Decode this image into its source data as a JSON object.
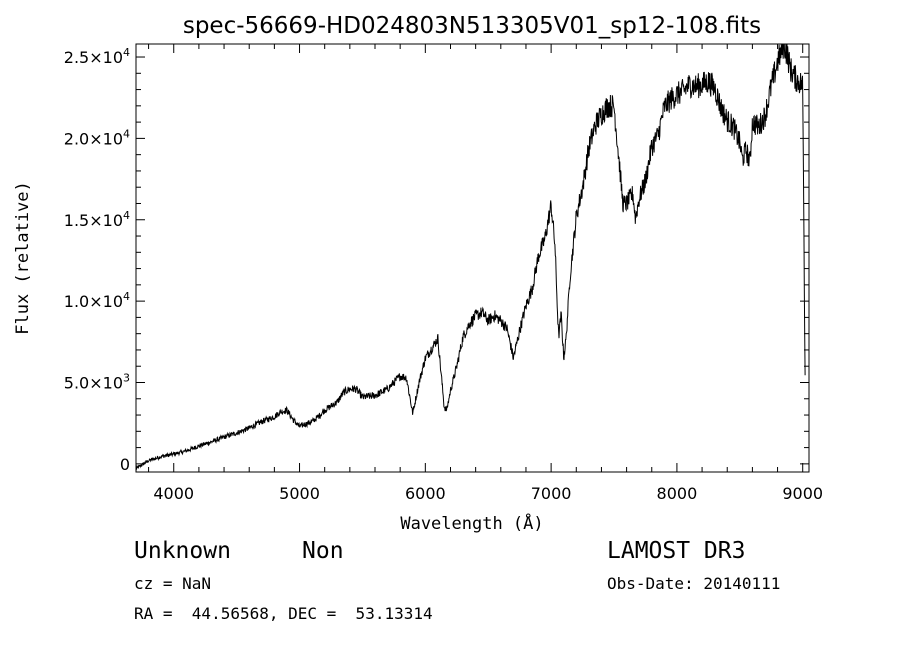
{
  "chart_data": {
    "type": "line",
    "title": "spec-56669-HD024803N513305V01_sp12-108.fits",
    "xlabel": "Wavelength (Å)",
    "ylabel": "Flux (relative)",
    "xlim": [
      3700,
      9050
    ],
    "ylim": [
      -500,
      25800
    ],
    "x_ticks": [
      4000,
      5000,
      6000,
      7000,
      8000,
      9000
    ],
    "x_tick_labels": [
      "4000",
      "5000",
      "6000",
      "7000",
      "8000",
      "9000"
    ],
    "y_ticks": [
      {
        "value": 0,
        "mantissa": "0",
        "exponent": ""
      },
      {
        "value": 5000,
        "mantissa": "5.0×10",
        "exponent": "3"
      },
      {
        "value": 10000,
        "mantissa": "1.0×10",
        "exponent": "4"
      },
      {
        "value": 15000,
        "mantissa": "1.5×10",
        "exponent": "4"
      },
      {
        "value": 20000,
        "mantissa": "2.0×10",
        "exponent": "4"
      },
      {
        "value": 25000,
        "mantissa": "2.5×10",
        "exponent": "4"
      }
    ],
    "grid": false,
    "series": [
      {
        "x": [
          3700,
          3800,
          3900,
          4000,
          4100,
          4200,
          4300,
          4400,
          4500,
          4600,
          4700,
          4800,
          4850,
          4900,
          4950,
          5000,
          5100,
          5150,
          5200,
          5300,
          5350,
          5400,
          5450,
          5500,
          5600,
          5700,
          5800,
          5850,
          5900,
          5950,
          6000,
          6100,
          6150,
          6170,
          6200,
          6250,
          6300,
          6350,
          6400,
          6450,
          6500,
          6550,
          6600,
          6650,
          6700,
          6750,
          6800,
          6850,
          6900,
          6950,
          7000,
          7030,
          7050,
          7060,
          7080,
          7100,
          7120,
          7150,
          7200,
          7250,
          7300,
          7350,
          7400,
          7450,
          7500,
          7550,
          7570,
          7600,
          7650,
          7670,
          7700,
          7750,
          7800,
          7850,
          7900,
          7950,
          8000,
          8050,
          8100,
          8150,
          8200,
          8250,
          8300,
          8350,
          8400,
          8450,
          8500,
          8520,
          8550,
          8580,
          8600,
          8650,
          8700,
          8750,
          8800,
          8850,
          8880,
          8900,
          8950,
          9000,
          9020
        ],
        "y": [
          -300,
          200,
          450,
          600,
          800,
          1100,
          1350,
          1650,
          1900,
          2200,
          2600,
          2900,
          3200,
          3300,
          2700,
          2300,
          2600,
          2900,
          3300,
          3800,
          4400,
          4600,
          4600,
          4100,
          4200,
          4600,
          5400,
          5300,
          3100,
          5000,
          6500,
          7700,
          3500,
          3300,
          4500,
          6000,
          7800,
          8600,
          9100,
          9300,
          8800,
          9100,
          8800,
          8300,
          6500,
          8200,
          9700,
          10800,
          12800,
          13800,
          15900,
          13500,
          9500,
          7800,
          9200,
          6500,
          7800,
          11500,
          15200,
          17000,
          19400,
          20800,
          21500,
          22000,
          22000,
          17800,
          16000,
          16000,
          16600,
          15100,
          16300,
          17400,
          19500,
          20200,
          21900,
          22400,
          22700,
          22900,
          23300,
          23200,
          23300,
          23500,
          23100,
          21900,
          21100,
          20700,
          19700,
          18700,
          19300,
          18500,
          21000,
          20700,
          21400,
          23200,
          24700,
          25800,
          25100,
          24300,
          23600,
          23300,
          4500
        ],
        "noise": 350
      }
    ]
  },
  "info": {
    "object_name": "Unknown",
    "object_class": "Non",
    "cz": "cz = NaN",
    "coords": "RA =  44.56568, DEC =  53.13314",
    "survey": "LAMOST DR3",
    "obs_date": "Obs-Date: 20140111"
  }
}
